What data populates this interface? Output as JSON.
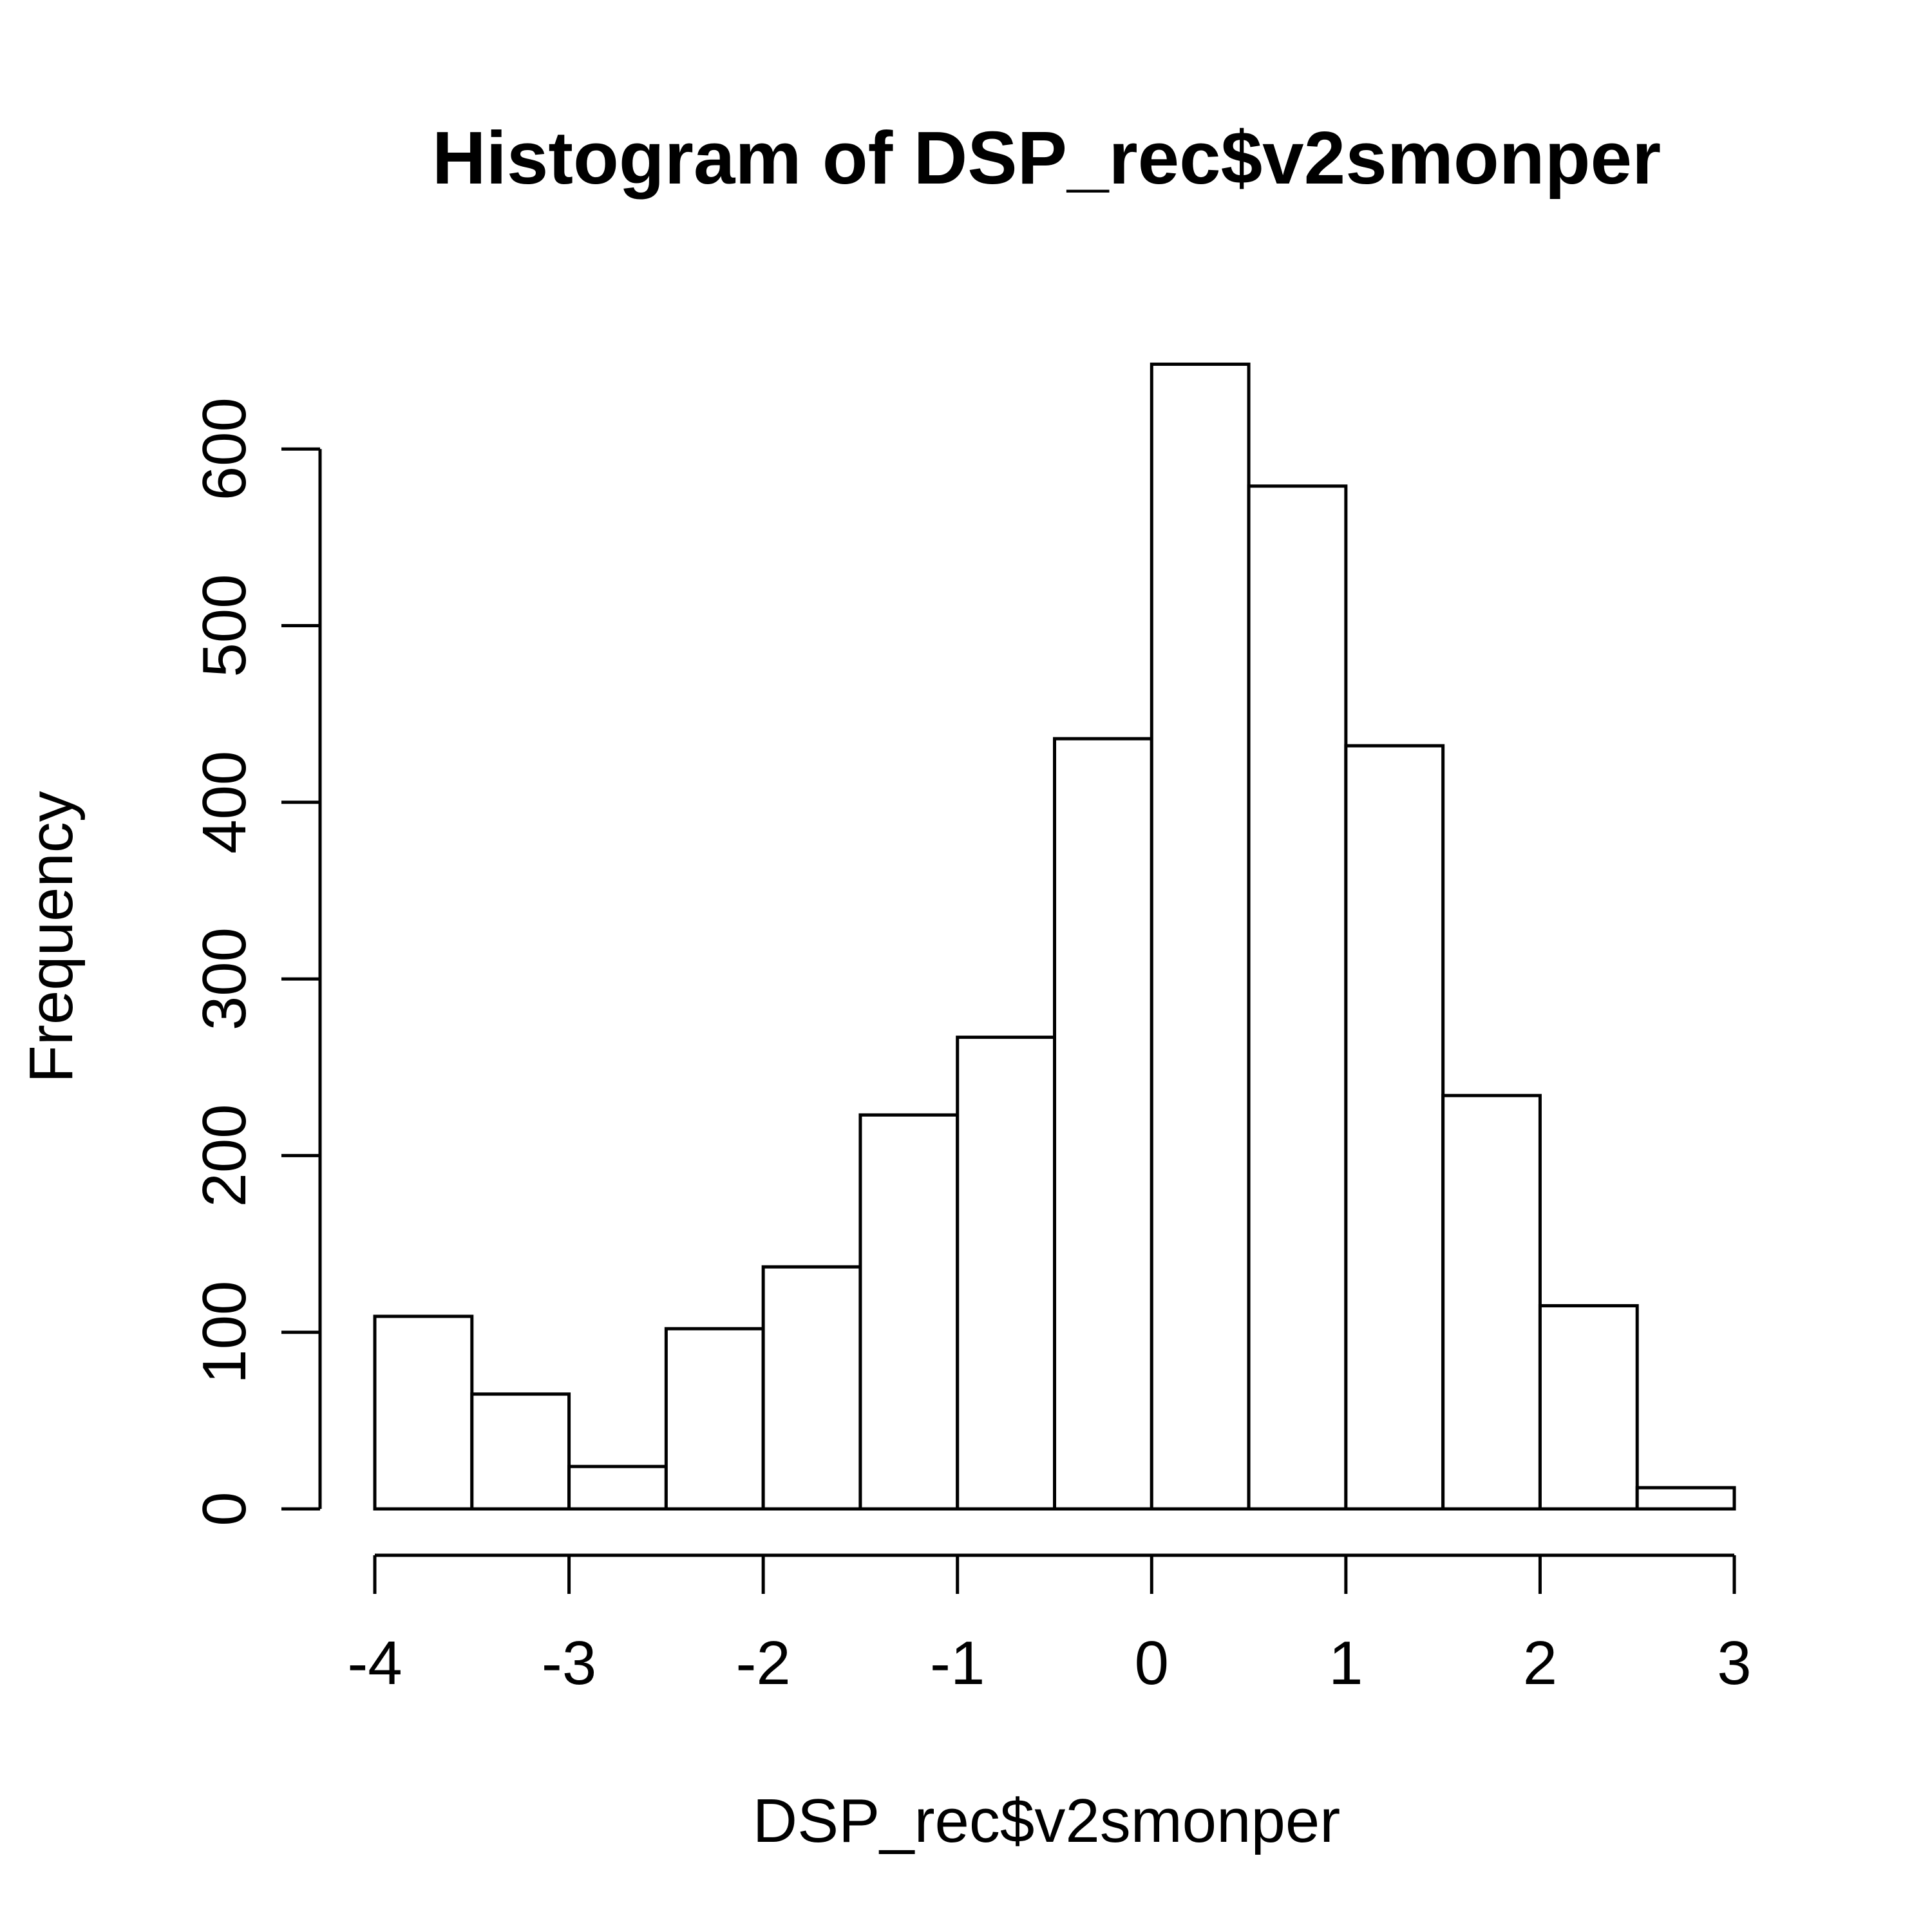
{
  "chart_data": {
    "type": "bar",
    "title": "Histogram of DSP_rec$v2smonper",
    "xlabel": "DSP_rec$v2smonper",
    "ylabel": "Frequency",
    "bins": [
      {
        "x0": -4.0,
        "x1": -3.5,
        "count": 109
      },
      {
        "x0": -3.5,
        "x1": -3.0,
        "count": 65
      },
      {
        "x0": -3.0,
        "x1": -2.5,
        "count": 24
      },
      {
        "x0": -2.5,
        "x1": -2.0,
        "count": 102
      },
      {
        "x0": -2.0,
        "x1": -1.5,
        "count": 137
      },
      {
        "x0": -1.5,
        "x1": -1.0,
        "count": 223
      },
      {
        "x0": -1.0,
        "x1": -0.5,
        "count": 267
      },
      {
        "x0": -0.5,
        "x1": 0.0,
        "count": 436
      },
      {
        "x0": 0.0,
        "x1": 0.5,
        "count": 648
      },
      {
        "x0": 0.5,
        "x1": 1.0,
        "count": 579
      },
      {
        "x0": 1.0,
        "x1": 1.5,
        "count": 432
      },
      {
        "x0": 1.5,
        "x1": 2.0,
        "count": 234
      },
      {
        "x0": 2.0,
        "x1": 2.5,
        "count": 115
      },
      {
        "x0": 2.5,
        "x1": 3.0,
        "count": 12
      }
    ],
    "xlim": [
      -4,
      3
    ],
    "ylim": [
      0,
      600
    ],
    "x_ticks": [
      -4,
      -3,
      -2,
      -1,
      0,
      1,
      2,
      3
    ],
    "y_ticks": [
      0,
      100,
      200,
      300,
      400,
      500,
      600
    ],
    "grid": false,
    "legend": "none",
    "colors": {
      "bar_fill": "#ffffff",
      "bar_stroke": "#000000",
      "background": "#ffffff"
    }
  }
}
